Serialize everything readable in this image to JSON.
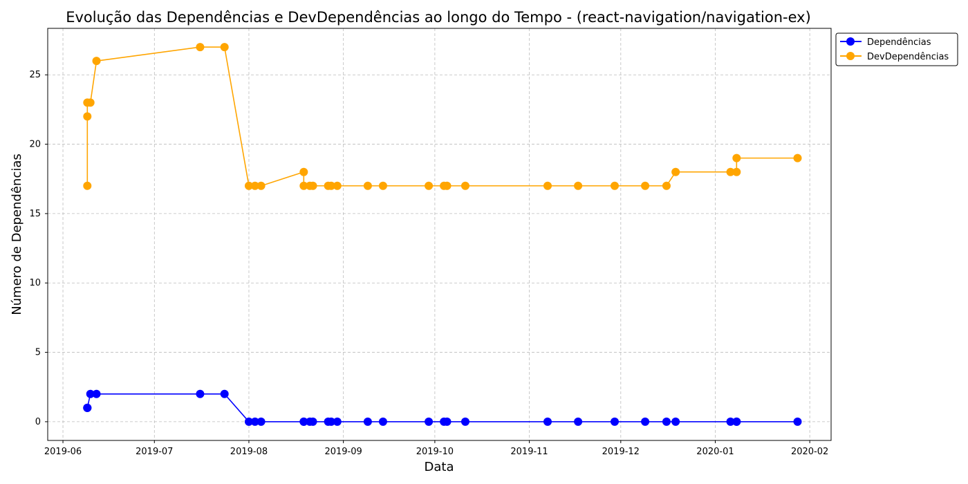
{
  "chart_data": {
    "type": "line",
    "title": "Evolução das Dependências e DevDependências ao longo do Tempo - (react-navigation/navigation-ex)",
    "xlabel": "Data",
    "ylabel": "Número de Dependências",
    "x_ticks": [
      "2019-06",
      "2019-07",
      "2019-08",
      "2019-09",
      "2019-10",
      "2019-11",
      "2019-12",
      "2020-01",
      "2020-02"
    ],
    "y_ticks": [
      0,
      5,
      10,
      15,
      20,
      25
    ],
    "xlim": [
      "2019-05-27",
      "2020-02-08"
    ],
    "ylim": [
      -1.35,
      28.35
    ],
    "grid": true,
    "legend_position": "upper-right-outside",
    "x": [
      "2019-06-09",
      "2019-06-09",
      "2019-06-09",
      "2019-06-10",
      "2019-06-12",
      "2019-07-16",
      "2019-07-24",
      "2019-08-01",
      "2019-08-03",
      "2019-08-05",
      "2019-08-19",
      "2019-08-19",
      "2019-08-21",
      "2019-08-22",
      "2019-08-27",
      "2019-08-28",
      "2019-08-30",
      "2019-09-09",
      "2019-09-14",
      "2019-09-29",
      "2019-10-04",
      "2019-10-05",
      "2019-10-11",
      "2019-11-07",
      "2019-11-17",
      "2019-11-29",
      "2019-12-09",
      "2019-12-16",
      "2019-12-19",
      "2020-01-06",
      "2020-01-08",
      "2020-01-08",
      "2020-01-28"
    ],
    "series": [
      {
        "name": "Dependências",
        "color": "#0000ff",
        "values": [
          1,
          1,
          1,
          2,
          2,
          2,
          2,
          0,
          0,
          0,
          0,
          0,
          0,
          0,
          0,
          0,
          0,
          0,
          0,
          0,
          0,
          0,
          0,
          0,
          0,
          0,
          0,
          0,
          0,
          0,
          0,
          0,
          0
        ]
      },
      {
        "name": "DevDependências",
        "color": "#ffa500",
        "values": [
          17,
          22,
          23,
          23,
          26,
          27,
          27,
          17,
          17,
          17,
          18,
          17,
          17,
          17,
          17,
          17,
          17,
          17,
          17,
          17,
          17,
          17,
          17,
          17,
          17,
          17,
          17,
          17,
          18,
          18,
          18,
          19,
          19
        ]
      }
    ]
  }
}
